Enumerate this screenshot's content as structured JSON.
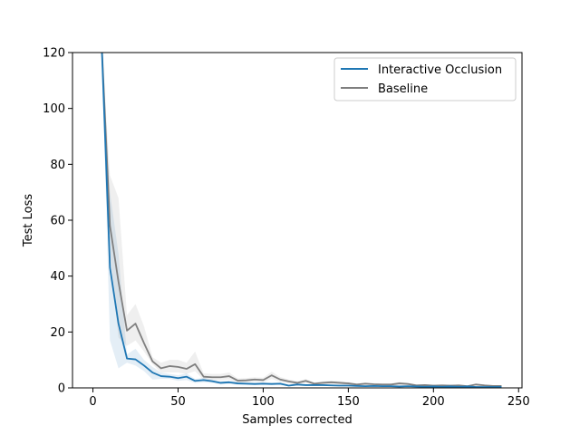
{
  "chart_data": {
    "type": "line",
    "title": "",
    "xlabel": "Samples corrected",
    "ylabel": "Test Loss",
    "xlim": [
      -12,
      252
    ],
    "ylim": [
      0,
      120
    ],
    "xticks": [
      0,
      50,
      100,
      150,
      200,
      250
    ],
    "yticks": [
      0,
      20,
      40,
      60,
      80,
      100,
      120
    ],
    "grid": false,
    "legend_position": "top-right",
    "x": [
      5,
      10,
      15,
      20,
      25,
      30,
      35,
      40,
      45,
      50,
      55,
      60,
      65,
      70,
      75,
      80,
      85,
      90,
      95,
      100,
      105,
      110,
      115,
      120,
      125,
      130,
      135,
      140,
      145,
      150,
      155,
      160,
      165,
      170,
      175,
      180,
      185,
      190,
      195,
      200,
      205,
      210,
      215,
      220,
      225,
      230,
      235,
      240
    ],
    "series": [
      {
        "name": "Interactive Occlusion",
        "color": "#1f77b4",
        "values": [
          125,
          43,
          23,
          10.5,
          10.2,
          8,
          5.5,
          4.2,
          4.0,
          3.5,
          4.0,
          2.5,
          2.8,
          2.4,
          1.8,
          2.0,
          1.6,
          1.5,
          1.4,
          1.5,
          1.4,
          1.5,
          0.8,
          1.2,
          1.0,
          1.0,
          1.0,
          0.9,
          0.8,
          0.8,
          0.7,
          0.6,
          0.7,
          0.6,
          0.6,
          0.5,
          0.6,
          0.5,
          0.4,
          0.5,
          0.4,
          0.5,
          0.4,
          0.5,
          0.3,
          0.3,
          0.3,
          0.3
        ],
        "lower": [
          125,
          17,
          7,
          9,
          8,
          6,
          3,
          3.2,
          3.2,
          2.5,
          2.8,
          1.8,
          2.0,
          1.8,
          1.2,
          1.4,
          1.1,
          1.0,
          1.0,
          1.0,
          1.0,
          1.0,
          0.5,
          0.8,
          0.7,
          0.7,
          0.7,
          0.6,
          0.5,
          0.5,
          0.4,
          0.4,
          0.4,
          0.4,
          0.4,
          0.3,
          0.4,
          0.3,
          0.2,
          0.3,
          0.2,
          0.3,
          0.2,
          0.3,
          0.1,
          0.1,
          0.1,
          0.1
        ],
        "upper": [
          125,
          70,
          48,
          12,
          14,
          10,
          7.5,
          5.5,
          5.0,
          4.5,
          5.2,
          3.2,
          3.6,
          3.0,
          2.4,
          2.6,
          2.1,
          2.0,
          1.8,
          2.0,
          1.8,
          2.0,
          1.1,
          1.6,
          1.3,
          1.3,
          1.3,
          1.2,
          1.1,
          1.1,
          1.0,
          0.8,
          1.0,
          0.8,
          0.8,
          0.7,
          0.8,
          0.7,
          0.6,
          0.7,
          0.6,
          0.7,
          0.6,
          0.7,
          0.5,
          0.5,
          0.5,
          0.5
        ]
      },
      {
        "name": "Baseline",
        "color": "#7f7f7f",
        "values": [
          125,
          58,
          38,
          20.5,
          23,
          16,
          9.5,
          7,
          7.8,
          7.5,
          6.8,
          8.5,
          4.0,
          3.8,
          3.8,
          4.2,
          2.6,
          2.7,
          3.0,
          2.8,
          4.5,
          3.0,
          2.3,
          1.8,
          2.5,
          1.5,
          1.8,
          2.0,
          1.8,
          1.6,
          1.2,
          1.5,
          1.3,
          1.2,
          1.2,
          1.6,
          1.4,
          0.9,
          1.0,
          0.8,
          0.9,
          0.8,
          0.9,
          0.6,
          1.2,
          0.9,
          0.7,
          0.7
        ],
        "lower": [
          125,
          48,
          18,
          15,
          17,
          13,
          8.5,
          5.5,
          5.5,
          5.5,
          5.0,
          6.0,
          2.8,
          2.8,
          2.8,
          3.0,
          1.9,
          2.0,
          2.2,
          2.0,
          3.2,
          2.1,
          1.6,
          1.3,
          1.8,
          1.0,
          1.3,
          1.4,
          1.3,
          1.1,
          0.8,
          1.0,
          0.9,
          0.8,
          0.8,
          1.1,
          1.0,
          0.6,
          0.7,
          0.5,
          0.6,
          0.5,
          0.6,
          0.4,
          0.8,
          0.6,
          0.5,
          0.5
        ],
        "upper": [
          125,
          76,
          68,
          26,
          30,
          22,
          11,
          9,
          10,
          10,
          9,
          13,
          5.2,
          5.0,
          5.0,
          5.5,
          3.4,
          3.5,
          3.8,
          3.6,
          5.8,
          3.9,
          3.0,
          2.4,
          3.2,
          2.0,
          2.4,
          2.6,
          2.4,
          2.1,
          1.6,
          2.0,
          1.7,
          1.6,
          1.6,
          2.1,
          1.8,
          1.2,
          1.3,
          1.1,
          1.2,
          1.1,
          1.2,
          0.8,
          1.6,
          1.2,
          0.9,
          0.9
        ]
      }
    ]
  }
}
